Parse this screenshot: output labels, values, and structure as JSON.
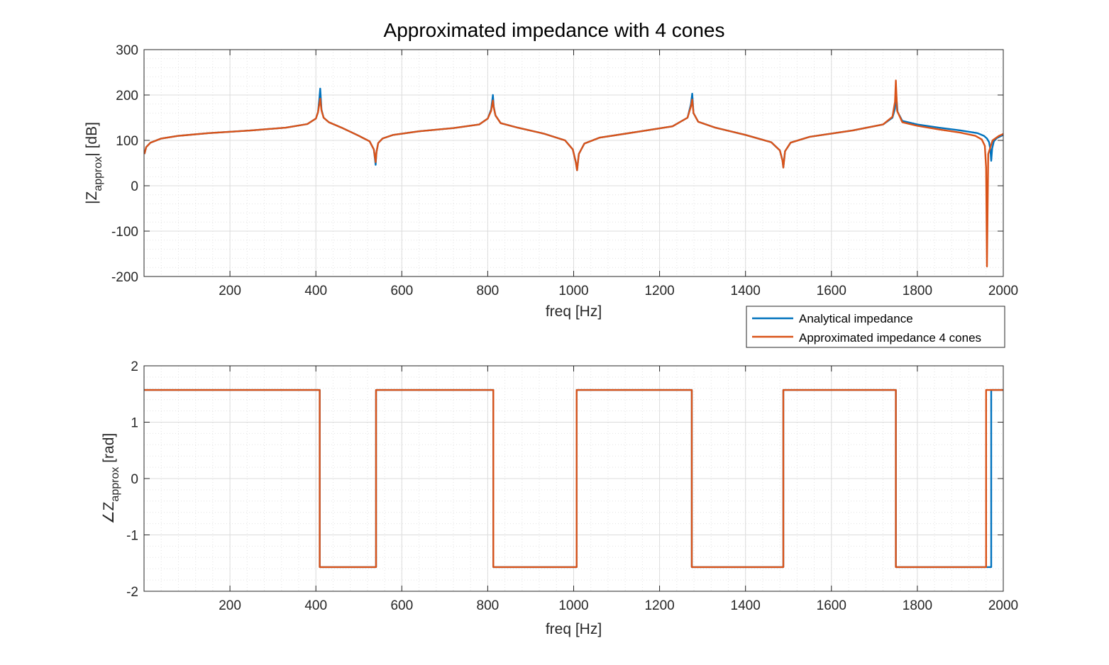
{
  "figure": {
    "title": "Approximated impedance with 4 cones"
  },
  "legend": {
    "location": "below top plot, right",
    "entries": [
      {
        "name": "Analytical impedance",
        "color": "#0072BD"
      },
      {
        "name": "Approximated impedance 4 cones",
        "color": "#D95319"
      }
    ]
  },
  "chart_data": [
    {
      "type": "line",
      "xlabel": "freq [Hz]",
      "ylabel": {
        "base": "|Z",
        "sub": "approx",
        "end": "| [dB]"
      },
      "xlim": [
        0,
        2000
      ],
      "ylim": [
        -200,
        300
      ],
      "xticks": [
        200,
        400,
        600,
        800,
        1000,
        1200,
        1400,
        1600,
        1800,
        2000
      ],
      "xtick_labels": [
        "200",
        "400",
        "600",
        "800",
        "1000",
        "1200",
        "1400",
        "1600",
        "1800",
        "2000"
      ],
      "yticks": [
        -200,
        -100,
        0,
        100,
        200,
        300
      ],
      "ytick_labels": [
        "-200",
        "-100",
        "0",
        "100",
        "200",
        "300"
      ],
      "grid": true,
      "minor_grid": true,
      "series": [
        {
          "name": "Analytical impedance",
          "color": "#0072BD",
          "x": [
            1,
            5,
            15,
            40,
            80,
            150,
            250,
            330,
            380,
            400,
            405,
            408,
            410,
            413,
            418,
            430,
            460,
            500,
            525,
            535,
            539,
            541,
            545,
            555,
            580,
            640,
            720,
            780,
            800,
            808,
            812,
            814,
            818,
            830,
            870,
            930,
            980,
            998,
            1005,
            1008,
            1012,
            1025,
            1060,
            1150,
            1230,
            1265,
            1273,
            1276,
            1279,
            1290,
            1330,
            1400,
            1460,
            1480,
            1486,
            1488,
            1492,
            1505,
            1550,
            1650,
            1720,
            1742,
            1748,
            1751,
            1754,
            1765,
            1800,
            1850,
            1900,
            1940,
            1955,
            1962,
            1967,
            1970,
            1972,
            1974,
            1978,
            1985,
            2000
          ],
          "y": [
            70,
            85,
            95,
            104,
            110,
            116,
            122,
            128,
            136,
            148,
            162,
            190,
            214,
            168,
            150,
            140,
            128,
            110,
            98,
            80,
            46,
            74,
            94,
            104,
            112,
            120,
            127,
            135,
            148,
            168,
            200,
            174,
            155,
            138,
            128,
            115,
            100,
            80,
            52,
            34,
            70,
            93,
            106,
            119,
            131,
            150,
            180,
            203,
            160,
            141,
            128,
            112,
            96,
            78,
            56,
            40,
            76,
            95,
            108,
            122,
            135,
            150,
            170,
            200,
            163,
            143,
            135,
            128,
            122,
            116,
            110,
            104,
            96,
            80,
            55,
            82,
            98,
            105,
            112
          ]
        },
        {
          "name": "Approximated impedance 4 cones",
          "color": "#D95319",
          "x": [
            1,
            5,
            15,
            40,
            80,
            150,
            250,
            330,
            380,
            400,
            405,
            408,
            410,
            413,
            418,
            430,
            460,
            500,
            525,
            535,
            539,
            541,
            545,
            555,
            580,
            640,
            720,
            780,
            800,
            808,
            812,
            814,
            818,
            830,
            870,
            930,
            980,
            998,
            1005,
            1008,
            1012,
            1025,
            1060,
            1150,
            1230,
            1265,
            1273,
            1276,
            1279,
            1290,
            1330,
            1400,
            1460,
            1480,
            1486,
            1488,
            1492,
            1505,
            1550,
            1650,
            1720,
            1742,
            1748,
            1750,
            1753,
            1765,
            1800,
            1850,
            1900,
            1935,
            1950,
            1957,
            1960,
            1962,
            1965,
            1975,
            1990,
            2000
          ],
          "y": [
            70,
            85,
            95,
            104,
            110,
            116,
            122,
            128,
            136,
            148,
            162,
            180,
            192,
            166,
            150,
            140,
            128,
            110,
            98,
            80,
            52,
            74,
            94,
            104,
            112,
            120,
            127,
            135,
            148,
            165,
            188,
            172,
            155,
            138,
            128,
            115,
            100,
            80,
            52,
            34,
            70,
            93,
            106,
            119,
            131,
            150,
            175,
            190,
            160,
            141,
            128,
            112,
            96,
            78,
            56,
            40,
            76,
            95,
            108,
            122,
            135,
            152,
            185,
            232,
            165,
            140,
            132,
            124,
            117,
            110,
            102,
            88,
            40,
            -178,
            70,
            100,
            110,
            114
          ]
        }
      ]
    },
    {
      "type": "line",
      "xlabel": "freq [Hz]",
      "ylabel": {
        "base": "∠Z",
        "sub": "approx",
        "end": "  [rad]"
      },
      "xlim": [
        0,
        2000
      ],
      "ylim": [
        -2,
        2
      ],
      "xticks": [
        200,
        400,
        600,
        800,
        1000,
        1200,
        1400,
        1600,
        1800,
        2000
      ],
      "xtick_labels": [
        "200",
        "400",
        "600",
        "800",
        "1000",
        "1200",
        "1400",
        "1600",
        "1800",
        "2000"
      ],
      "yticks": [
        -2,
        -1,
        0,
        1,
        2
      ],
      "ytick_labels": [
        "-2",
        "-1",
        "0",
        "1",
        "2"
      ],
      "grid": true,
      "minor_grid": true,
      "series": [
        {
          "name": "Analytical impedance",
          "color": "#0072BD",
          "x": [
            1,
            409,
            409,
            540,
            540,
            813,
            813,
            1007,
            1007,
            1275,
            1275,
            1488,
            1488,
            1750,
            1750,
            1972,
            1972,
            2000
          ],
          "y": [
            1.571,
            1.571,
            -1.571,
            -1.571,
            1.571,
            1.571,
            -1.571,
            -1.571,
            1.571,
            1.571,
            -1.571,
            -1.571,
            1.571,
            1.571,
            -1.571,
            -1.571,
            1.571,
            1.571
          ]
        },
        {
          "name": "Approximated impedance 4 cones",
          "color": "#D95319",
          "x": [
            1,
            409,
            409,
            540,
            540,
            813,
            813,
            1007,
            1007,
            1275,
            1275,
            1488,
            1488,
            1750,
            1750,
            1960,
            1960,
            2000
          ],
          "y": [
            1.571,
            1.571,
            -1.571,
            -1.571,
            1.571,
            1.571,
            -1.571,
            -1.571,
            1.571,
            1.571,
            -1.571,
            -1.571,
            1.571,
            1.571,
            -1.571,
            -1.571,
            1.571,
            1.571
          ]
        }
      ]
    }
  ]
}
